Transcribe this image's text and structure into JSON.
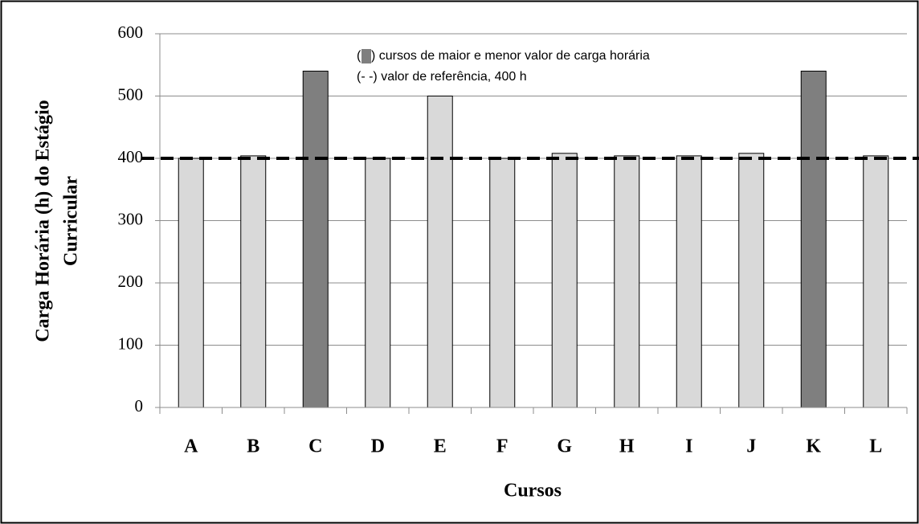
{
  "chart_data": {
    "type": "bar",
    "y_label": [
      "Carga Horária (h) do Estágio",
      "Curricular"
    ],
    "x_label": "Cursos",
    "categories": [
      "A",
      "B",
      "C",
      "D",
      "E",
      "F",
      "G",
      "H",
      "I",
      "J",
      "K",
      "L"
    ],
    "values": [
      400,
      404,
      540,
      400,
      500,
      400,
      408,
      404,
      404,
      408,
      540,
      404
    ],
    "colors": [
      "#d9d9d9",
      "#d9d9d9",
      "#7f7f7f",
      "#d9d9d9",
      "#d9d9d9",
      "#d9d9d9",
      "#d9d9d9",
      "#d9d9d9",
      "#d9d9d9",
      "#d9d9d9",
      "#7f7f7f",
      "#d9d9d9"
    ],
    "ylim": [
      0,
      600
    ],
    "yticks": [
      0,
      100,
      200,
      300,
      400,
      500,
      600
    ],
    "grid": true,
    "reference_line": 400,
    "annotations": [
      "(",
      ") cursos de maior e menor valor de carga horária",
      "(- -) valor de referência, 400 h"
    ],
    "highlight_color": "#7f7f7f"
  }
}
